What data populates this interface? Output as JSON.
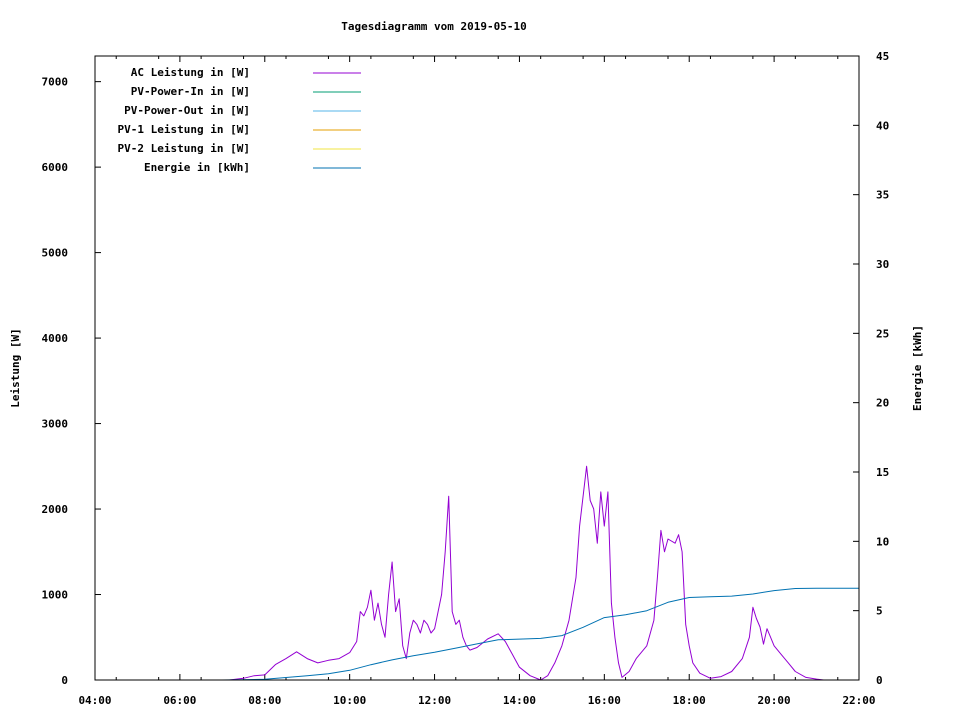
{
  "chart_data": {
    "type": "line",
    "title": "Tagesdiagramm vom 2019-05-10",
    "ylabel": "Leistung [W]",
    "y2label": "Energie [kWh]",
    "xlim": [
      "04:00",
      "22:00"
    ],
    "ylim": [
      0,
      7300
    ],
    "y2lim": [
      0,
      45
    ],
    "x_ticks": [
      "04:00",
      "06:00",
      "08:00",
      "10:00",
      "12:00",
      "14:00",
      "16:00",
      "18:00",
      "20:00",
      "22:00"
    ],
    "y_ticks": [
      "0",
      "1000",
      "2000",
      "3000",
      "4000",
      "5000",
      "6000",
      "7000"
    ],
    "y2_ticks": [
      "0",
      "5",
      "10",
      "15",
      "20",
      "25",
      "30",
      "35",
      "40",
      "45"
    ],
    "legend_position": "top-left",
    "series": [
      {
        "name": "AC Leistung in [W]",
        "axis": "left",
        "color": "#9400d3",
        "points": [
          [
            "07:10",
            0
          ],
          [
            "07:30",
            20
          ],
          [
            "07:45",
            50
          ],
          [
            "08:00",
            60
          ],
          [
            "08:15",
            180
          ],
          [
            "08:30",
            250
          ],
          [
            "08:45",
            330
          ],
          [
            "09:00",
            250
          ],
          [
            "09:15",
            200
          ],
          [
            "09:30",
            230
          ],
          [
            "09:45",
            250
          ],
          [
            "10:00",
            320
          ],
          [
            "10:10",
            450
          ],
          [
            "10:15",
            800
          ],
          [
            "10:20",
            750
          ],
          [
            "10:25",
            850
          ],
          [
            "10:30",
            1050
          ],
          [
            "10:35",
            700
          ],
          [
            "10:40",
            900
          ],
          [
            "10:45",
            650
          ],
          [
            "10:50",
            500
          ],
          [
            "10:55",
            1000
          ],
          [
            "11:00",
            1380
          ],
          [
            "11:05",
            800
          ],
          [
            "11:10",
            950
          ],
          [
            "11:15",
            400
          ],
          [
            "11:20",
            250
          ],
          [
            "11:25",
            550
          ],
          [
            "11:30",
            700
          ],
          [
            "11:35",
            650
          ],
          [
            "11:40",
            550
          ],
          [
            "11:45",
            700
          ],
          [
            "11:50",
            650
          ],
          [
            "11:55",
            550
          ],
          [
            "12:00",
            600
          ],
          [
            "12:05",
            800
          ],
          [
            "12:10",
            1000
          ],
          [
            "12:15",
            1500
          ],
          [
            "12:20",
            2150
          ],
          [
            "12:25",
            800
          ],
          [
            "12:30",
            650
          ],
          [
            "12:35",
            700
          ],
          [
            "12:40",
            500
          ],
          [
            "12:45",
            400
          ],
          [
            "12:50",
            350
          ],
          [
            "13:00",
            380
          ],
          [
            "13:15",
            480
          ],
          [
            "13:30",
            540
          ],
          [
            "13:40",
            450
          ],
          [
            "13:50",
            300
          ],
          [
            "14:00",
            150
          ],
          [
            "14:15",
            50
          ],
          [
            "14:30",
            0
          ],
          [
            "14:40",
            50
          ],
          [
            "14:50",
            200
          ],
          [
            "15:00",
            400
          ],
          [
            "15:10",
            700
          ],
          [
            "15:20",
            1200
          ],
          [
            "15:25",
            1800
          ],
          [
            "15:30",
            2150
          ],
          [
            "15:35",
            2500
          ],
          [
            "15:40",
            2100
          ],
          [
            "15:45",
            2000
          ],
          [
            "15:50",
            1600
          ],
          [
            "15:55",
            2200
          ],
          [
            "16:00",
            1800
          ],
          [
            "16:05",
            2200
          ],
          [
            "16:10",
            900
          ],
          [
            "16:15",
            500
          ],
          [
            "16:20",
            200
          ],
          [
            "16:25",
            30
          ],
          [
            "16:35",
            100
          ],
          [
            "16:45",
            250
          ],
          [
            "17:00",
            400
          ],
          [
            "17:10",
            700
          ],
          [
            "17:15",
            1200
          ],
          [
            "17:20",
            1750
          ],
          [
            "17:25",
            1500
          ],
          [
            "17:30",
            1650
          ],
          [
            "17:40",
            1600
          ],
          [
            "17:45",
            1700
          ],
          [
            "17:50",
            1500
          ],
          [
            "17:55",
            650
          ],
          [
            "18:00",
            400
          ],
          [
            "18:05",
            200
          ],
          [
            "18:15",
            80
          ],
          [
            "18:30",
            20
          ],
          [
            "18:45",
            40
          ],
          [
            "19:00",
            100
          ],
          [
            "19:15",
            250
          ],
          [
            "19:25",
            500
          ],
          [
            "19:30",
            850
          ],
          [
            "19:35",
            720
          ],
          [
            "19:40",
            620
          ],
          [
            "19:45",
            420
          ],
          [
            "19:50",
            600
          ],
          [
            "19:55",
            500
          ],
          [
            "20:00",
            400
          ],
          [
            "20:10",
            300
          ],
          [
            "20:20",
            200
          ],
          [
            "20:30",
            100
          ],
          [
            "20:45",
            30
          ],
          [
            "21:00",
            10
          ],
          [
            "21:10",
            0
          ]
        ]
      },
      {
        "name": "PV-Power-In in [W]",
        "axis": "left",
        "color": "#009e73",
        "points": []
      },
      {
        "name": "PV-Power-Out in [W]",
        "axis": "left",
        "color": "#56b4e9",
        "points": []
      },
      {
        "name": "PV-1 Leistung in [W]",
        "axis": "left",
        "color": "#e69f00",
        "points": []
      },
      {
        "name": "PV-2 Leistung in [W]",
        "axis": "left",
        "color": "#f0e442",
        "points": []
      },
      {
        "name": "Energie in [kWh]",
        "axis": "right",
        "color": "#0072b2",
        "points": [
          [
            "07:00",
            0
          ],
          [
            "08:00",
            0.05
          ],
          [
            "09:00",
            0.3
          ],
          [
            "09:30",
            0.45
          ],
          [
            "10:00",
            0.7
          ],
          [
            "10:30",
            1.1
          ],
          [
            "11:00",
            1.45
          ],
          [
            "11:30",
            1.75
          ],
          [
            "12:00",
            2.0
          ],
          [
            "12:30",
            2.3
          ],
          [
            "13:00",
            2.6
          ],
          [
            "13:30",
            2.9
          ],
          [
            "14:00",
            2.95
          ],
          [
            "14:30",
            3.0
          ],
          [
            "15:00",
            3.2
          ],
          [
            "15:30",
            3.8
          ],
          [
            "16:00",
            4.5
          ],
          [
            "16:30",
            4.7
          ],
          [
            "17:00",
            5.0
          ],
          [
            "17:30",
            5.6
          ],
          [
            "18:00",
            5.95
          ],
          [
            "18:30",
            6.0
          ],
          [
            "19:00",
            6.05
          ],
          [
            "19:30",
            6.2
          ],
          [
            "20:00",
            6.45
          ],
          [
            "20:30",
            6.6
          ],
          [
            "21:00",
            6.62
          ],
          [
            "22:00",
            6.62
          ]
        ]
      }
    ]
  }
}
